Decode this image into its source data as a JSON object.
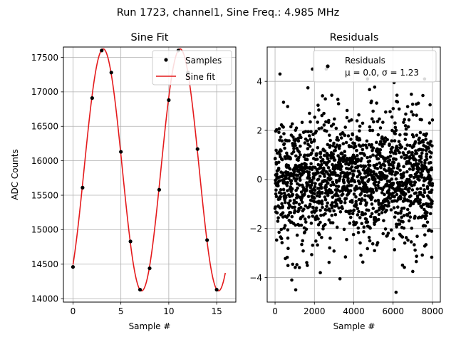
{
  "figure": {
    "suptitle": "Run 1723, channel1, Sine Freq.: 4.985 MHz"
  },
  "chart_data": [
    {
      "type": "line",
      "title": "Sine Fit",
      "xlabel": "Sample #",
      "ylabel": "ADC Counts",
      "xlim": [
        -1,
        17
      ],
      "ylim": [
        13950,
        17650
      ],
      "xticks": [
        0,
        5,
        10,
        15
      ],
      "yticks": [
        14000,
        14500,
        15000,
        15500,
        16000,
        16500,
        17000,
        17500
      ],
      "grid": true,
      "legend_position": "top-right",
      "series": [
        {
          "name": "Samples",
          "kind": "scatter",
          "color": "#000000",
          "x": [
            0,
            1,
            2,
            3,
            4,
            5,
            6,
            7,
            8,
            9,
            10,
            11,
            12,
            13,
            14,
            15
          ],
          "y": [
            14460,
            15610,
            16910,
            17600,
            17280,
            16130,
            14830,
            14130,
            14440,
            15580,
            16880,
            17600,
            17280,
            16170,
            14850,
            14130
          ]
        },
        {
          "name": "Sine fit",
          "kind": "line",
          "color": "#e41a1c",
          "model": {
            "offset": 15868,
            "amplitude": 1755,
            "cycles_per_sample": 0.1246,
            "phase": -0.9,
            "x_range": [
              0,
              15.9
            ]
          }
        }
      ]
    },
    {
      "type": "scatter",
      "title": "Residuals",
      "xlabel": "Sample #",
      "ylabel": "",
      "xlim": [
        -400,
        8400
      ],
      "ylim": [
        -5.0,
        5.4
      ],
      "xticks": [
        0,
        2000,
        4000,
        6000,
        8000
      ],
      "yticks": [
        -4,
        -2,
        0,
        2,
        4
      ],
      "grid": true,
      "legend_position": "top-right",
      "series": [
        {
          "name": "Residuals",
          "legend_text": [
            "Residuals",
            "μ = 0.0, σ = 1.23"
          ],
          "color": "#000000",
          "n_points": 8000,
          "x_range": [
            0,
            7999
          ],
          "mean": 0.0,
          "std": 1.23,
          "outliers": [
            {
              "x": 1900,
              "y": 4.5
            },
            {
              "x": 2600,
              "y": 4.5
            },
            {
              "x": 6050,
              "y": 3.95
            },
            {
              "x": 1050,
              "y": -4.5
            },
            {
              "x": 850,
              "y": -4.1
            },
            {
              "x": 3300,
              "y": -4.05
            },
            {
              "x": 6150,
              "y": -4.6
            },
            {
              "x": 2300,
              "y": -3.8
            },
            {
              "x": 7000,
              "y": -3.75
            },
            {
              "x": 4700,
              "y": 4.1
            },
            {
              "x": 250,
              "y": 4.3
            },
            {
              "x": 7600,
              "y": 4.1
            }
          ]
        }
      ]
    }
  ]
}
